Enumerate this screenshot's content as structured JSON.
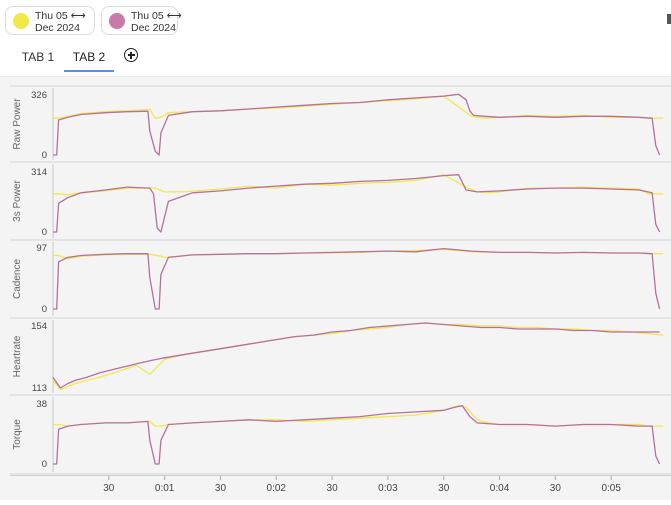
{
  "sessions": [
    {
      "color": "#f2e84a",
      "line1": "Thu 05 ⟷",
      "line2": "Dec 2024"
    },
    {
      "color": "#c879a8",
      "line1": "Thu 05 ⟷",
      "line2": "Dec 2024"
    }
  ],
  "tabs": [
    {
      "label": "TAB 1"
    },
    {
      "label": "TAB 2"
    }
  ],
  "active_tab": 1,
  "chart_data": [
    {
      "type": "line",
      "ylabel": "Raw Power",
      "ylim": [
        0,
        326
      ],
      "yticks": [
        "326",
        "0"
      ],
      "series": [
        {
          "color": "#f2e84a",
          "x": [
            0,
            3,
            8,
            15,
            28,
            40,
            52,
            55,
            58,
            62,
            75,
            90,
            105,
            120,
            135,
            150,
            165,
            180,
            195,
            210,
            225,
            228,
            232,
            240,
            255,
            270,
            285,
            300,
            315,
            320,
            328
          ],
          "y": [
            200,
            200,
            210,
            225,
            235,
            240,
            248,
            200,
            205,
            230,
            235,
            240,
            250,
            255,
            265,
            275,
            285,
            295,
            305,
            320,
            210,
            205,
            200,
            205,
            215,
            210,
            215,
            205,
            205,
            200,
            200
          ]
        },
        {
          "color": "#b56fa0",
          "x": [
            0,
            2,
            3,
            8,
            15,
            28,
            40,
            51,
            52,
            55,
            57,
            58,
            62,
            75,
            90,
            105,
            120,
            135,
            150,
            165,
            180,
            195,
            210,
            218,
            222,
            224,
            226,
            232,
            240,
            255,
            270,
            285,
            300,
            315,
            322,
            324,
            326
          ],
          "y": [
            0,
            0,
            190,
            205,
            220,
            230,
            235,
            238,
            130,
            20,
            0,
            120,
            215,
            235,
            240,
            250,
            260,
            270,
            280,
            285,
            300,
            310,
            320,
            330,
            300,
            240,
            215,
            210,
            205,
            210,
            205,
            210,
            210,
            205,
            200,
            50,
            0
          ]
        }
      ]
    },
    {
      "type": "line",
      "ylabel": "3s Power",
      "ylim": [
        0,
        314
      ],
      "yticks": [
        "314",
        "0"
      ],
      "series": [
        {
          "color": "#f2e84a",
          "x": [
            0,
            3,
            8,
            15,
            28,
            40,
            55,
            60,
            70,
            90,
            105,
            120,
            135,
            150,
            165,
            180,
            195,
            210,
            222,
            228,
            234,
            240,
            255,
            270,
            285,
            300,
            315,
            320,
            328
          ],
          "y": [
            200,
            200,
            195,
            205,
            215,
            230,
            230,
            210,
            210,
            225,
            240,
            230,
            250,
            245,
            255,
            260,
            270,
            300,
            235,
            210,
            205,
            210,
            230,
            230,
            235,
            230,
            225,
            200,
            200
          ]
        },
        {
          "color": "#b56fa0",
          "x": [
            0,
            2,
            3,
            8,
            15,
            28,
            40,
            52,
            54,
            56,
            58,
            62,
            75,
            90,
            105,
            120,
            135,
            150,
            165,
            180,
            195,
            210,
            218,
            222,
            228,
            240,
            255,
            270,
            285,
            300,
            315,
            322,
            324,
            326
          ],
          "y": [
            0,
            0,
            150,
            180,
            205,
            220,
            235,
            230,
            200,
            20,
            0,
            160,
            205,
            215,
            230,
            240,
            250,
            255,
            265,
            270,
            280,
            295,
            300,
            220,
            210,
            215,
            225,
            230,
            230,
            225,
            220,
            205,
            40,
            0
          ]
        }
      ]
    },
    {
      "type": "line",
      "ylabel": "Cadence",
      "ylim": [
        0,
        97
      ],
      "yticks": [
        "97",
        "0"
      ],
      "series": [
        {
          "color": "#f2e84a",
          "x": [
            0,
            3,
            8,
            15,
            28,
            40,
            52,
            58,
            60,
            75,
            90,
            105,
            120,
            135,
            150,
            165,
            180,
            195,
            210,
            225,
            240,
            255,
            270,
            285,
            300,
            315,
            320,
            328
          ],
          "y": [
            85,
            85,
            80,
            84,
            86,
            87,
            87,
            84,
            82,
            86,
            87,
            88,
            88,
            89,
            89,
            90,
            92,
            93,
            95,
            91,
            90,
            90,
            89,
            90,
            89,
            89,
            88,
            88
          ]
        },
        {
          "color": "#b56fa0",
          "x": [
            0,
            2,
            3,
            8,
            15,
            28,
            40,
            51,
            52,
            55,
            57,
            58,
            62,
            75,
            90,
            105,
            120,
            135,
            150,
            165,
            180,
            195,
            210,
            225,
            240,
            255,
            270,
            285,
            300,
            315,
            322,
            324,
            326
          ],
          "y": [
            0,
            0,
            75,
            82,
            85,
            87,
            88,
            88,
            50,
            0,
            0,
            55,
            82,
            86,
            87,
            88,
            88,
            89,
            90,
            91,
            92,
            91,
            96,
            92,
            90,
            90,
            89,
            90,
            89,
            89,
            88,
            25,
            0
          ]
        }
      ]
    },
    {
      "type": "line",
      "ylabel": "Heartrate",
      "ylim": [
        113,
        154
      ],
      "yticks": [
        "154",
        "113"
      ],
      "series": [
        {
          "color": "#f2e84a",
          "x": [
            0,
            4,
            8,
            12,
            18,
            25,
            35,
            45,
            52,
            60,
            70,
            80,
            90,
            100,
            110,
            120,
            130,
            140,
            150,
            160,
            170,
            180,
            190,
            200,
            210,
            220,
            230,
            240,
            250,
            260,
            270,
            280,
            290,
            300,
            310,
            320,
            328
          ],
          "y": [
            118,
            112,
            114,
            116,
            118,
            120,
            124,
            128,
            122,
            132,
            135,
            137,
            139,
            141,
            143,
            145,
            147,
            148,
            149,
            151,
            152,
            153,
            155,
            156,
            155,
            155,
            154,
            154,
            153,
            153,
            152,
            152,
            151,
            151,
            150,
            149,
            148
          ]
        },
        {
          "color": "#b56fa0",
          "x": [
            0,
            4,
            8,
            12,
            18,
            25,
            35,
            45,
            52,
            60,
            70,
            80,
            90,
            100,
            110,
            120,
            130,
            140,
            150,
            160,
            170,
            180,
            190,
            200,
            210,
            220,
            230,
            240,
            250,
            260,
            270,
            280,
            290,
            300,
            310,
            320,
            326
          ],
          "y": [
            120,
            113,
            116,
            118,
            120,
            123,
            126,
            129,
            131,
            133,
            135,
            137,
            139,
            141,
            143,
            145,
            147,
            148,
            150,
            151,
            153,
            154,
            155,
            156,
            155,
            154,
            153,
            153,
            152,
            152,
            152,
            151,
            151,
            150,
            150,
            150,
            150
          ]
        }
      ]
    },
    {
      "type": "line",
      "ylabel": "Torque",
      "ylim": [
        0,
        38
      ],
      "yticks": [
        "38",
        "0"
      ],
      "series": [
        {
          "color": "#f2e84a",
          "x": [
            0,
            3,
            8,
            15,
            28,
            40,
            52,
            55,
            58,
            62,
            75,
            90,
            105,
            120,
            135,
            150,
            165,
            180,
            195,
            210,
            218,
            222,
            228,
            234,
            240,
            255,
            270,
            285,
            300,
            315,
            320,
            328
          ],
          "y": [
            25,
            25,
            24,
            25,
            26,
            26,
            27,
            24,
            24,
            25,
            26,
            27,
            28,
            28,
            27,
            28,
            29,
            30,
            31,
            34,
            37,
            36,
            28,
            26,
            25,
            25,
            24,
            25,
            25,
            25,
            24,
            24
          ]
        },
        {
          "color": "#b56fa0",
          "x": [
            0,
            2,
            3,
            8,
            15,
            28,
            40,
            51,
            52,
            55,
            57,
            58,
            62,
            75,
            90,
            105,
            120,
            135,
            150,
            165,
            180,
            195,
            210,
            216,
            220,
            224,
            228,
            240,
            255,
            270,
            285,
            300,
            315,
            322,
            324,
            326
          ],
          "y": [
            0,
            0,
            22,
            24,
            25,
            26,
            26,
            27,
            15,
            0,
            0,
            15,
            25,
            26,
            27,
            28,
            27,
            28,
            29,
            30,
            32,
            33,
            34,
            36,
            37,
            30,
            26,
            25,
            25,
            24,
            25,
            25,
            24,
            24,
            5,
            0
          ]
        }
      ]
    }
  ],
  "x_axis": {
    "xlim": [
      0,
      330
    ],
    "ticks": [
      {
        "value": 30,
        "label": "30"
      },
      {
        "value": 60,
        "label": "0:01"
      },
      {
        "value": 90,
        "label": "30"
      },
      {
        "value": 120,
        "label": "0:02"
      },
      {
        "value": 150,
        "label": "30"
      },
      {
        "value": 180,
        "label": "0:03"
      },
      {
        "value": 210,
        "label": "30"
      },
      {
        "value": 240,
        "label": "0:04"
      },
      {
        "value": 270,
        "label": "30"
      },
      {
        "value": 300,
        "label": "0:05"
      }
    ]
  }
}
